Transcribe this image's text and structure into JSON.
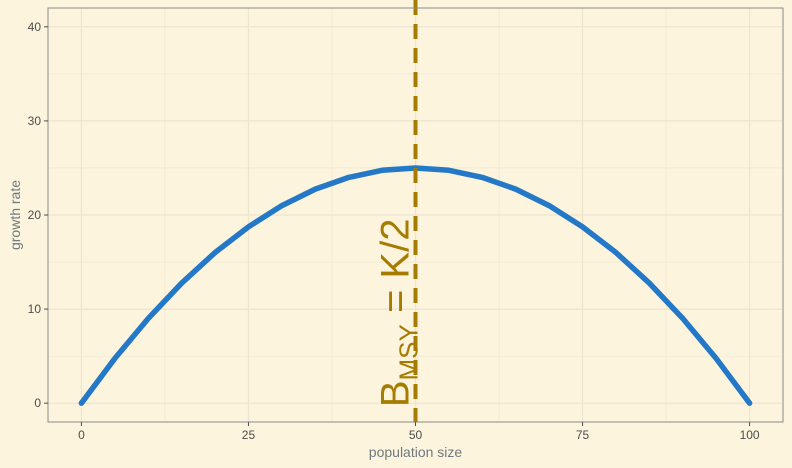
{
  "chart_data": {
    "type": "line",
    "xlabel": "population size",
    "ylabel": "growth rate",
    "xlim": [
      -5,
      105
    ],
    "ylim": [
      -2,
      42
    ],
    "x_ticks": [
      0,
      25,
      50,
      75,
      100
    ],
    "y_ticks": [
      0,
      10,
      20,
      30,
      40
    ],
    "x_minor": [
      12.5,
      37.5,
      62.5,
      87.5
    ],
    "y_minor": [
      5,
      15,
      25,
      35
    ],
    "grid": true,
    "series": [
      {
        "color": "#2478c8",
        "x": [
          0,
          5,
          10,
          15,
          20,
          25,
          30,
          35,
          40,
          45,
          50,
          55,
          60,
          65,
          70,
          75,
          80,
          85,
          90,
          95,
          100
        ],
        "y": [
          0,
          4.75,
          9,
          12.75,
          16,
          18.75,
          21,
          22.75,
          24,
          24.75,
          25,
          24.75,
          24,
          22.75,
          21,
          18.75,
          16,
          12.75,
          9,
          4.75,
          0
        ]
      }
    ],
    "vline": {
      "x": 50,
      "color": "#a67c00",
      "style": "dashed"
    },
    "annotation": {
      "base": "B",
      "subscript": "MSY",
      "rest": " = K",
      "slash": "/",
      "tail": "2",
      "color": "#a67c00",
      "x": 50,
      "y": 0
    },
    "colors": {
      "background": "#fdf4de",
      "grid": "#ebe4cf",
      "panel_border": "#8a8a8a"
    }
  }
}
